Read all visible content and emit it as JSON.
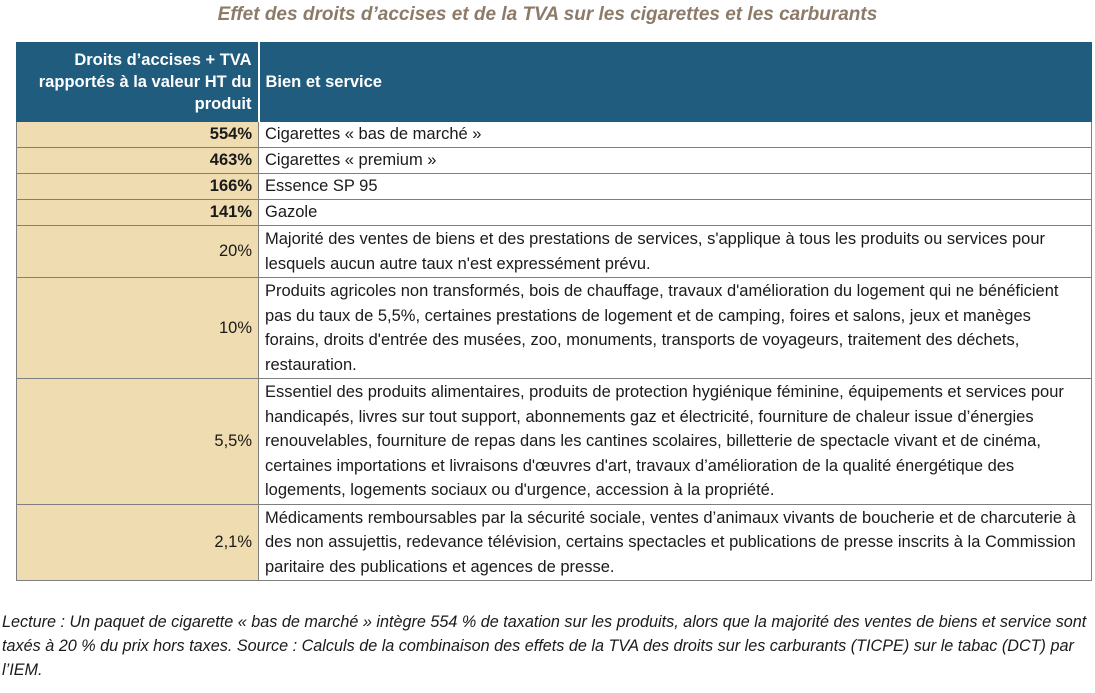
{
  "title": "Effet des droits d’accises et de la TVA sur les cigarettes et les carburants",
  "table": {
    "headers": {
      "rate": "Droits d’accises + TVA rapportés à la valeur HT du produit",
      "goods": "Bien et service"
    },
    "rows": [
      {
        "rate": "554%",
        "goods": "Cigarettes « bas de marché »"
      },
      {
        "rate": "463%",
        "goods": "Cigarettes « premium »"
      },
      {
        "rate": "166%",
        "goods": "Essence SP 95"
      },
      {
        "rate": "141%",
        "goods": "Gazole"
      },
      {
        "rate": "20%",
        "goods": "Majorité des ventes de biens et des prestations de services, s'applique à tous les produits ou services pour lesquels aucun autre taux n'est expressément prévu."
      },
      {
        "rate": "10%",
        "goods": "Produits agricoles non transformés, bois de chauffage, travaux d'amélioration du logement qui ne bénéficient pas du taux de 5,5%, certaines prestations de logement et de camping, foires et salons, jeux et manèges forains, droits d'entrée des musées, zoo, monuments, transports de voyageurs, traitement des déchets, restauration."
      },
      {
        "rate": "5,5%",
        "goods": "Essentiel des produits alimentaires, produits de protection hygiénique féminine, équipements et services pour handicapés, livres sur tout support, abonnements gaz et électricité, fourniture de chaleur issue d’énergies renouvelables, fourniture de repas dans les cantines scolaires, billetterie de spectacle vivant et de cinéma, certaines importations et livraisons d'œuvres d'art, travaux d’amélioration de la qualité énergétique des logements, logements sociaux ou d'urgence, accession à la propriété."
      },
      {
        "rate": "2,1%",
        "goods": "Médicaments remboursables par la sécurité sociale, ventes d’animaux vivants de boucherie et de charcuterie à des non assujettis, redevance télévision, certains spectacles et publications de presse inscrits à la Commission paritaire des publications et agences de presse."
      }
    ]
  },
  "note": "Lecture : Un paquet de cigarette « bas de marché » intègre 554 % de taxation sur les produits, alors que la majorité des ventes de biens et service sont taxés à 20 % du prix hors taxes. Source : Calculs de la combinaison des effets de la TVA des droits sur les carburants (TICPE) sur le tabac (DCT) par l’IEM.",
  "colors": {
    "header_background": "#1f5c7e",
    "rate_cell_background": "#efdcb0",
    "title_color": "#8c7b69"
  }
}
